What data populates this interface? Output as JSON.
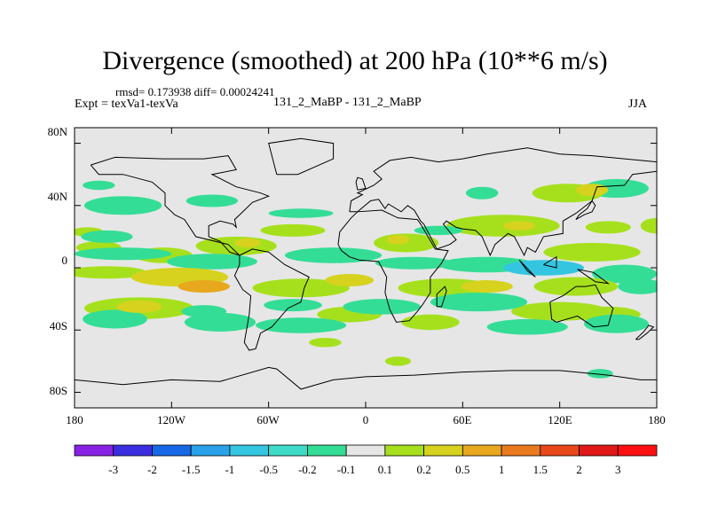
{
  "title": "Divergence (smoothed) at 200 hPa (10**6 m/s)",
  "stats_line": "rmsd= 0.173938 diff= 0.00024241",
  "experiment": "Expt = texVa1-texVa",
  "case_label": "131_2_MaBP - 131_2_MaBP",
  "season": "JJA",
  "lat_ticks": [
    "80N",
    "40N",
    "0",
    "40S",
    "80S"
  ],
  "lon_ticks": [
    "180",
    "120W",
    "60W",
    "0",
    "60E",
    "120E",
    "180"
  ],
  "colorbar": {
    "labels": [
      "-3",
      "-2",
      "-1.5",
      "-1",
      "-0.5",
      "-0.2",
      "-0.1",
      "0.1",
      "0.2",
      "0.5",
      "1",
      "1.5",
      "2",
      "3"
    ],
    "colors": [
      "#8a22e6",
      "#3b2ee0",
      "#1668e6",
      "#2aa1e8",
      "#34c6e0",
      "#3fdbc8",
      "#34dd96",
      "#e6e6e6",
      "#a6e01c",
      "#d6d21e",
      "#e8a81e",
      "#ea7a1e",
      "#e8481a",
      "#e01818",
      "#ff1010"
    ]
  },
  "map_colors": {
    "background": "#e6e6e6",
    "positive_1": "#a6e01c",
    "positive_2": "#d6d21e",
    "positive_3": "#e8a81e",
    "negative_1": "#34dd96",
    "negative_2": "#34c6e0",
    "negative_3": "#2aa1e8",
    "coastline": "#000000"
  }
}
